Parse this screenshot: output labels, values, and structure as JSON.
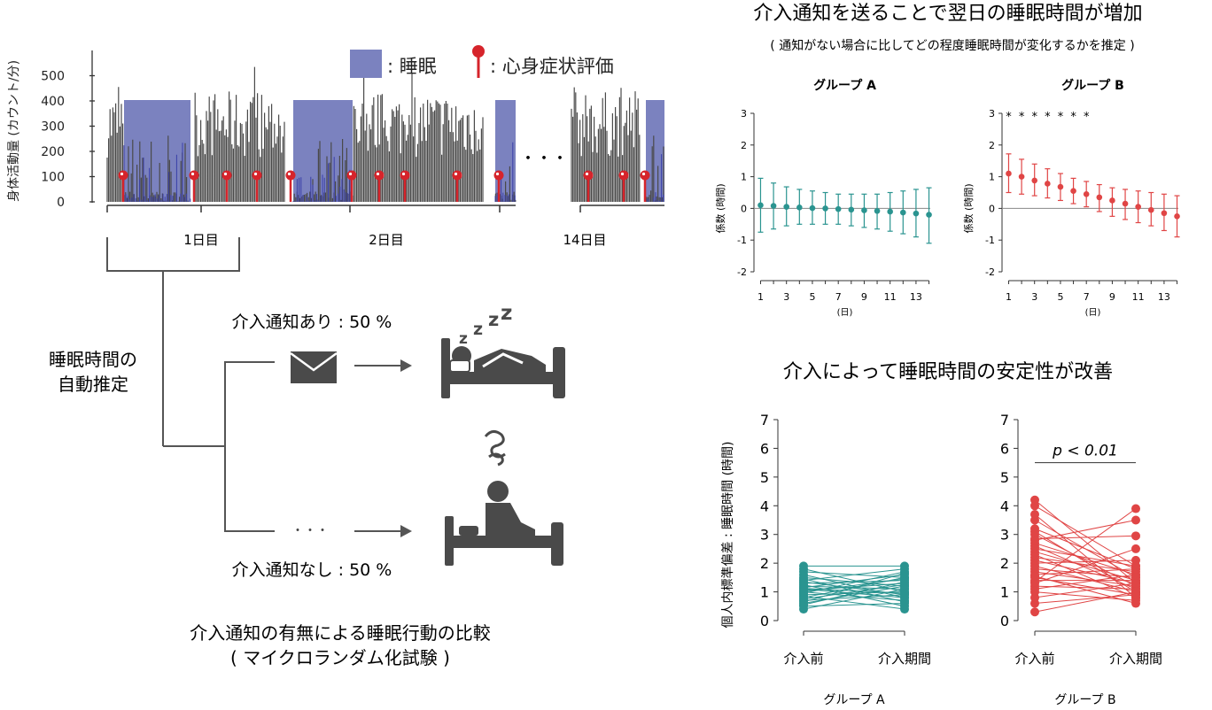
{
  "activity": {
    "ylabel": "身体活動量 (カウント/分)",
    "yticks": [
      "0",
      "100",
      "200",
      "300",
      "400",
      "500"
    ],
    "legend_sleep": ": 睡眠",
    "legend_eval": ": 心身症状評価",
    "day_labels": [
      "1日目",
      "2日目",
      "14日目"
    ],
    "ellipsis": "・・・"
  },
  "flow": {
    "estimate_line1": "睡眠時間の",
    "estimate_line2": "自動推定",
    "with_notice": "介入通知あり : 50 %",
    "without_notice": "介入通知なし : 50 %",
    "dots": "・・・",
    "caption_line1": "介入通知の有無による睡眠行動の比較",
    "caption_line2": "( マイクロランダム化試験 )",
    "colors": {
      "line": "#555555",
      "icon": "#4a4a4a"
    }
  },
  "effect": {
    "title": "介入通知を送ることで翌日の睡眠時間が増加",
    "subtitle": "( 通知がない場合に比してどの程度睡眠時間が変化するかを推定 )"
  },
  "stability": {
    "title": "介入によって睡眠時間の安定性が改善",
    "ylabel": "個人内標準偏差 : 睡眠時間 (時間)",
    "p_label": "p < 0.01"
  },
  "chart_data": [
    {
      "type": "line",
      "panel": "グループ A",
      "title": "グループ A",
      "xlabel": "(日)",
      "ylabel": "係数 (時間)",
      "x": [
        1,
        2,
        3,
        4,
        5,
        6,
        7,
        8,
        9,
        10,
        11,
        12,
        13,
        14
      ],
      "xticks": [
        1,
        3,
        5,
        7,
        9,
        11,
        13
      ],
      "yticks": [
        -2,
        -1,
        0,
        1,
        2,
        3
      ],
      "ylim": [
        -2,
        3
      ],
      "estimate": [
        0.1,
        0.08,
        0.05,
        0.03,
        0.01,
        0.0,
        -0.02,
        -0.04,
        -0.06,
        -0.08,
        -0.1,
        -0.13,
        -0.16,
        -0.2
      ],
      "lower": [
        -0.75,
        -0.65,
        -0.55,
        -0.5,
        -0.5,
        -0.5,
        -0.5,
        -0.55,
        -0.6,
        -0.65,
        -0.72,
        -0.8,
        -0.9,
        -1.1
      ],
      "upper": [
        0.95,
        0.8,
        0.68,
        0.6,
        0.55,
        0.5,
        0.45,
        0.45,
        0.45,
        0.45,
        0.5,
        0.55,
        0.6,
        0.65
      ],
      "color": "#2a9490",
      "significance": []
    },
    {
      "type": "line",
      "panel": "グループ B",
      "title": "グループ B",
      "xlabel": "(日)",
      "ylabel": "係数 (時間)",
      "x": [
        1,
        2,
        3,
        4,
        5,
        6,
        7,
        8,
        9,
        10,
        11,
        12,
        13,
        14
      ],
      "xticks": [
        1,
        3,
        5,
        7,
        9,
        11,
        13
      ],
      "yticks": [
        -2,
        -1,
        0,
        1,
        2,
        3
      ],
      "ylim": [
        -2,
        3
      ],
      "estimate": [
        1.1,
        1.0,
        0.88,
        0.78,
        0.68,
        0.55,
        0.45,
        0.35,
        0.25,
        0.15,
        0.05,
        -0.05,
        -0.15,
        -0.25
      ],
      "lower": [
        0.5,
        0.45,
        0.4,
        0.33,
        0.25,
        0.15,
        0.05,
        -0.1,
        -0.25,
        -0.35,
        -0.45,
        -0.55,
        -0.7,
        -0.9
      ],
      "upper": [
        1.72,
        1.55,
        1.4,
        1.25,
        1.1,
        0.95,
        0.85,
        0.75,
        0.65,
        0.6,
        0.55,
        0.5,
        0.45,
        0.4
      ],
      "color": "#e04545",
      "significance": [
        "*",
        "*",
        "*",
        "*",
        "*",
        "*",
        "*"
      ]
    },
    {
      "type": "scatter",
      "panel": "グループ A",
      "xlabel": "グループ A",
      "categories": [
        "介入前",
        "介入期間"
      ],
      "yticks": [
        0,
        1,
        2,
        3,
        4,
        5,
        6,
        7
      ],
      "ylim": [
        0,
        7
      ],
      "color": "#2a9490",
      "pairs": [
        [
          0.4,
          1.1
        ],
        [
          0.5,
          0.6
        ],
        [
          0.6,
          1.2
        ],
        [
          0.7,
          0.9
        ],
        [
          0.8,
          1.5
        ],
        [
          0.85,
          0.4
        ],
        [
          0.9,
          1.0
        ],
        [
          0.95,
          1.7
        ],
        [
          1.0,
          0.7
        ],
        [
          1.05,
          1.3
        ],
        [
          1.1,
          0.8
        ],
        [
          1.15,
          1.6
        ],
        [
          1.2,
          1.1
        ],
        [
          1.25,
          0.5
        ],
        [
          1.3,
          1.4
        ],
        [
          1.35,
          0.9
        ],
        [
          1.4,
          1.8
        ],
        [
          1.5,
          1.2
        ],
        [
          1.6,
          0.8
        ],
        [
          1.7,
          1.5
        ],
        [
          1.8,
          1.0
        ],
        [
          1.9,
          1.9
        ],
        [
          0.75,
          1.25
        ],
        [
          1.0,
          1.45
        ],
        [
          1.12,
          0.95
        ],
        [
          0.65,
          1.65
        ],
        [
          1.45,
          0.65
        ],
        [
          0.55,
          1.35
        ]
      ],
      "p_label": ""
    },
    {
      "type": "scatter",
      "panel": "グループ B",
      "xlabel": "グループ B",
      "categories": [
        "介入前",
        "介入期間"
      ],
      "yticks": [
        0,
        1,
        2,
        3,
        4,
        5,
        6,
        7
      ],
      "ylim": [
        0,
        7
      ],
      "color": "#e04545",
      "pairs": [
        [
          0.3,
          1.0
        ],
        [
          0.6,
          0.9
        ],
        [
          0.8,
          1.3
        ],
        [
          1.0,
          0.7
        ],
        [
          1.1,
          1.6
        ],
        [
          1.2,
          1.1
        ],
        [
          1.3,
          2.5
        ],
        [
          1.4,
          1.4
        ],
        [
          1.5,
          0.9
        ],
        [
          1.6,
          1.8
        ],
        [
          1.7,
          1.2
        ],
        [
          1.8,
          1.5
        ],
        [
          1.9,
          1.0
        ],
        [
          2.0,
          2.1
        ],
        [
          2.1,
          1.3
        ],
        [
          2.2,
          1.7
        ],
        [
          2.3,
          0.8
        ],
        [
          2.4,
          1.4
        ],
        [
          2.5,
          1.9
        ],
        [
          2.6,
          1.1
        ],
        [
          2.7,
          1.6
        ],
        [
          2.8,
          3.5
        ],
        [
          3.0,
          1.2
        ],
        [
          3.2,
          1.8
        ],
        [
          3.5,
          1.5
        ],
        [
          3.7,
          0.8
        ],
        [
          4.0,
          1.9
        ],
        [
          4.2,
          1.3
        ],
        [
          1.35,
          3.9
        ],
        [
          2.85,
          2.95
        ],
        [
          1.55,
          0.6
        ],
        [
          3.1,
          1.0
        ]
      ],
      "p_label": "p < 0.01"
    }
  ]
}
